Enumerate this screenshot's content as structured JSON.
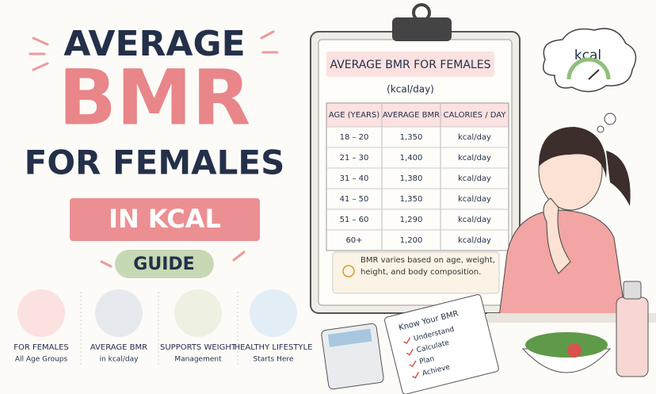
{
  "title": {
    "line1": "AVERAGE",
    "line2": "BMR",
    "line3": "FOR FEMALES",
    "badge": "IN KCAL",
    "tag": "GUIDE"
  },
  "features": [
    {
      "title": "FOR FEMALES",
      "subtitle": "All Age Groups"
    },
    {
      "title": "AVERAGE BMR",
      "subtitle": "in kcal/day"
    },
    {
      "title": "SUPPORTS WEIGHT",
      "subtitle": "Management"
    },
    {
      "title": "HEALTHY LIFESTYLE",
      "subtitle": "Starts Here"
    }
  ],
  "clipboard": {
    "title": "AVERAGE BMR FOR FEMALES",
    "subtitle": "(kcal/day)",
    "table": {
      "header": [
        "AGE (YEARS)",
        "AVERAGE BMR",
        "CALORIES / DAY"
      ],
      "rows": [
        [
          "18 – 20",
          "1,350",
          "kcal/day"
        ],
        [
          "21 – 30",
          "1,400",
          "kcal/day"
        ],
        [
          "31 – 40",
          "1,380",
          "kcal/day"
        ],
        [
          "41 – 50",
          "1,350",
          "kcal/day"
        ],
        [
          "51 – 60",
          "1,290",
          "kcal/day"
        ],
        [
          "60+",
          "1,200",
          "kcal/day"
        ]
      ]
    },
    "note": "BMR varies based on age, weight, height, and body composition."
  },
  "thought": "kcal",
  "notebook": {
    "title": "Know Your BMR",
    "items": [
      "Understand",
      "Calculate",
      "Plan",
      "Achieve"
    ]
  }
}
